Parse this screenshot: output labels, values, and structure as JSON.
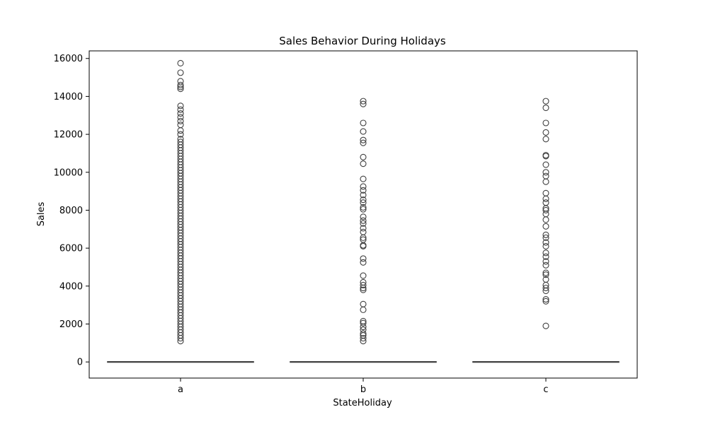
{
  "chart_data": {
    "type": "box",
    "title": "Sales Behavior During Holidays",
    "xlabel": "StateHoliday",
    "ylabel": "Sales",
    "ylim": [
      -850,
      16400
    ],
    "yticks": [
      0,
      2000,
      4000,
      6000,
      8000,
      10000,
      12000,
      14000,
      16000
    ],
    "categories": [
      "a",
      "b",
      "c"
    ],
    "grid": false,
    "legend": "none",
    "box": {
      "q1": 0,
      "median": 0,
      "q3": 0,
      "whisker_low": 0,
      "whisker_high": 0
    },
    "outliers": {
      "a": [
        1100,
        1250,
        1400,
        1550,
        1700,
        1850,
        2000,
        2150,
        2300,
        2450,
        2600,
        2750,
        2900,
        3050,
        3200,
        3350,
        3500,
        3650,
        3800,
        3950,
        4100,
        4250,
        4400,
        4550,
        4700,
        4850,
        5000,
        5150,
        5300,
        5450,
        5600,
        5750,
        5900,
        6050,
        6200,
        6350,
        6500,
        6650,
        6800,
        6950,
        7100,
        7250,
        7400,
        7550,
        7700,
        7850,
        8000,
        8150,
        8300,
        8450,
        8600,
        8750,
        8900,
        9050,
        9200,
        9350,
        9500,
        9650,
        9800,
        9950,
        10100,
        10250,
        10400,
        10550,
        10700,
        10850,
        11000,
        11150,
        11300,
        11450,
        11600,
        11750,
        12000,
        12200,
        12500,
        12700,
        12900,
        13100,
        13300,
        13500,
        14400,
        14500,
        14600,
        14800,
        15250,
        15750
      ],
      "b": [
        1100,
        1250,
        1400,
        1500,
        1700,
        1850,
        2050,
        2150,
        2750,
        3050,
        3800,
        3900,
        4050,
        4200,
        4550,
        5250,
        5450,
        6100,
        6150,
        6450,
        6550,
        6850,
        7050,
        7300,
        7450,
        7650,
        8050,
        8150,
        8400,
        8550,
        8800,
        9050,
        9250,
        9650,
        10450,
        10800,
        11550,
        11700,
        12150,
        12600,
        13600,
        13750
      ],
      "c": [
        1900,
        3200,
        3300,
        3750,
        3900,
        4050,
        4350,
        4600,
        4700,
        5100,
        5300,
        5550,
        5750,
        6100,
        6300,
        6550,
        6700,
        7150,
        7500,
        7800,
        8000,
        8100,
        8400,
        8600,
        8900,
        9500,
        9800,
        10000,
        10400,
        10850,
        10900,
        11750,
        12100,
        12600,
        13400,
        13750
      ]
    }
  }
}
